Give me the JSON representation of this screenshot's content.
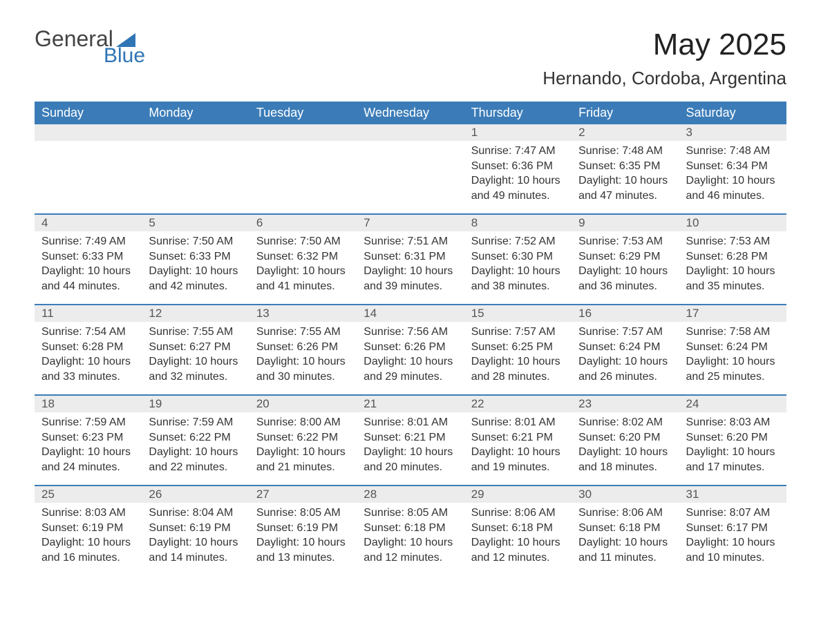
{
  "logo": {
    "general": "General",
    "blue": "Blue",
    "tri_color": "#2f75b5"
  },
  "header": {
    "month_year": "May 2025",
    "location": "Hernando, Cordoba, Argentina"
  },
  "colors": {
    "header_bg": "#3b7cb8",
    "header_text": "#ffffff",
    "daynum_bg": "#ececec",
    "accent": "#2f75b5",
    "body_text": "#333333"
  },
  "layout": {
    "columns": 7,
    "start_day_index": 4
  },
  "day_names": [
    "Sunday",
    "Monday",
    "Tuesday",
    "Wednesday",
    "Thursday",
    "Friday",
    "Saturday"
  ],
  "labels": {
    "sunrise": "Sunrise:",
    "sunset": "Sunset:",
    "daylight": "Daylight:"
  },
  "days": [
    {
      "n": 1,
      "sr": "7:47 AM",
      "ss": "6:36 PM",
      "dl": "10 hours and 49 minutes."
    },
    {
      "n": 2,
      "sr": "7:48 AM",
      "ss": "6:35 PM",
      "dl": "10 hours and 47 minutes."
    },
    {
      "n": 3,
      "sr": "7:48 AM",
      "ss": "6:34 PM",
      "dl": "10 hours and 46 minutes."
    },
    {
      "n": 4,
      "sr": "7:49 AM",
      "ss": "6:33 PM",
      "dl": "10 hours and 44 minutes."
    },
    {
      "n": 5,
      "sr": "7:50 AM",
      "ss": "6:33 PM",
      "dl": "10 hours and 42 minutes."
    },
    {
      "n": 6,
      "sr": "7:50 AM",
      "ss": "6:32 PM",
      "dl": "10 hours and 41 minutes."
    },
    {
      "n": 7,
      "sr": "7:51 AM",
      "ss": "6:31 PM",
      "dl": "10 hours and 39 minutes."
    },
    {
      "n": 8,
      "sr": "7:52 AM",
      "ss": "6:30 PM",
      "dl": "10 hours and 38 minutes."
    },
    {
      "n": 9,
      "sr": "7:53 AM",
      "ss": "6:29 PM",
      "dl": "10 hours and 36 minutes."
    },
    {
      "n": 10,
      "sr": "7:53 AM",
      "ss": "6:28 PM",
      "dl": "10 hours and 35 minutes."
    },
    {
      "n": 11,
      "sr": "7:54 AM",
      "ss": "6:28 PM",
      "dl": "10 hours and 33 minutes."
    },
    {
      "n": 12,
      "sr": "7:55 AM",
      "ss": "6:27 PM",
      "dl": "10 hours and 32 minutes."
    },
    {
      "n": 13,
      "sr": "7:55 AM",
      "ss": "6:26 PM",
      "dl": "10 hours and 30 minutes."
    },
    {
      "n": 14,
      "sr": "7:56 AM",
      "ss": "6:26 PM",
      "dl": "10 hours and 29 minutes."
    },
    {
      "n": 15,
      "sr": "7:57 AM",
      "ss": "6:25 PM",
      "dl": "10 hours and 28 minutes."
    },
    {
      "n": 16,
      "sr": "7:57 AM",
      "ss": "6:24 PM",
      "dl": "10 hours and 26 minutes."
    },
    {
      "n": 17,
      "sr": "7:58 AM",
      "ss": "6:24 PM",
      "dl": "10 hours and 25 minutes."
    },
    {
      "n": 18,
      "sr": "7:59 AM",
      "ss": "6:23 PM",
      "dl": "10 hours and 24 minutes."
    },
    {
      "n": 19,
      "sr": "7:59 AM",
      "ss": "6:22 PM",
      "dl": "10 hours and 22 minutes."
    },
    {
      "n": 20,
      "sr": "8:00 AM",
      "ss": "6:22 PM",
      "dl": "10 hours and 21 minutes."
    },
    {
      "n": 21,
      "sr": "8:01 AM",
      "ss": "6:21 PM",
      "dl": "10 hours and 20 minutes."
    },
    {
      "n": 22,
      "sr": "8:01 AM",
      "ss": "6:21 PM",
      "dl": "10 hours and 19 minutes."
    },
    {
      "n": 23,
      "sr": "8:02 AM",
      "ss": "6:20 PM",
      "dl": "10 hours and 18 minutes."
    },
    {
      "n": 24,
      "sr": "8:03 AM",
      "ss": "6:20 PM",
      "dl": "10 hours and 17 minutes."
    },
    {
      "n": 25,
      "sr": "8:03 AM",
      "ss": "6:19 PM",
      "dl": "10 hours and 16 minutes."
    },
    {
      "n": 26,
      "sr": "8:04 AM",
      "ss": "6:19 PM",
      "dl": "10 hours and 14 minutes."
    },
    {
      "n": 27,
      "sr": "8:05 AM",
      "ss": "6:19 PM",
      "dl": "10 hours and 13 minutes."
    },
    {
      "n": 28,
      "sr": "8:05 AM",
      "ss": "6:18 PM",
      "dl": "10 hours and 12 minutes."
    },
    {
      "n": 29,
      "sr": "8:06 AM",
      "ss": "6:18 PM",
      "dl": "10 hours and 12 minutes."
    },
    {
      "n": 30,
      "sr": "8:06 AM",
      "ss": "6:18 PM",
      "dl": "10 hours and 11 minutes."
    },
    {
      "n": 31,
      "sr": "8:07 AM",
      "ss": "6:17 PM",
      "dl": "10 hours and 10 minutes."
    }
  ]
}
